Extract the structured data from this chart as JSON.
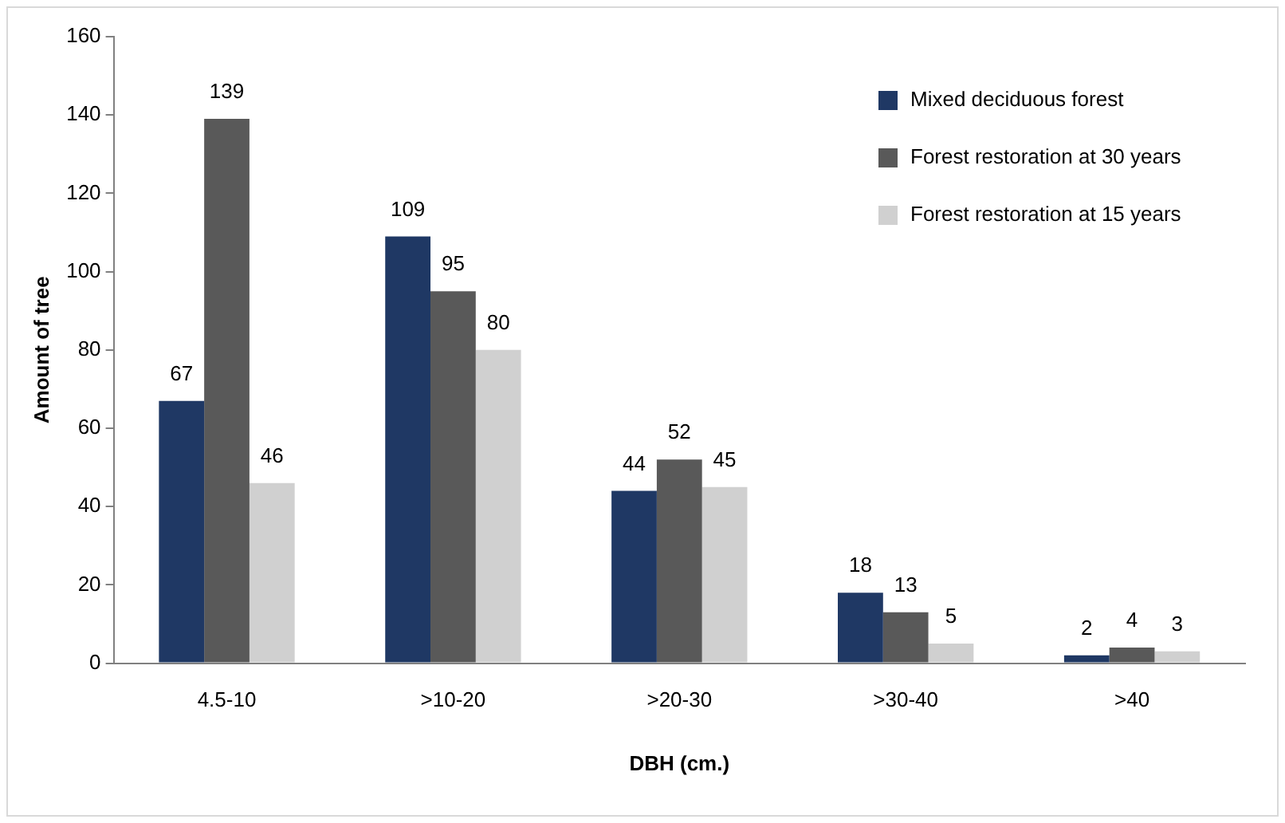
{
  "chart_data": {
    "type": "bar",
    "xlabel": "DBH (cm.)",
    "ylabel": "Amount of tree",
    "categories": [
      "4.5-10",
      ">10-20",
      ">20-30",
      ">30-40",
      ">40"
    ],
    "series": [
      {
        "name": "Mixed deciduous forest",
        "color": "#1f3864",
        "values": [
          67,
          109,
          44,
          18,
          2
        ]
      },
      {
        "name": "Forest restoration at 30 years",
        "color": "#595959",
        "values": [
          139,
          95,
          52,
          13,
          4
        ]
      },
      {
        "name": "Forest restoration at 15 years",
        "color": "#d0d0d0",
        "values": [
          46,
          80,
          45,
          5,
          3
        ]
      }
    ],
    "ylim": [
      0,
      160
    ],
    "yticks": [
      0,
      20,
      40,
      60,
      80,
      100,
      120,
      140,
      160
    ],
    "grid": false,
    "legend": "top right",
    "data_labels": true
  }
}
